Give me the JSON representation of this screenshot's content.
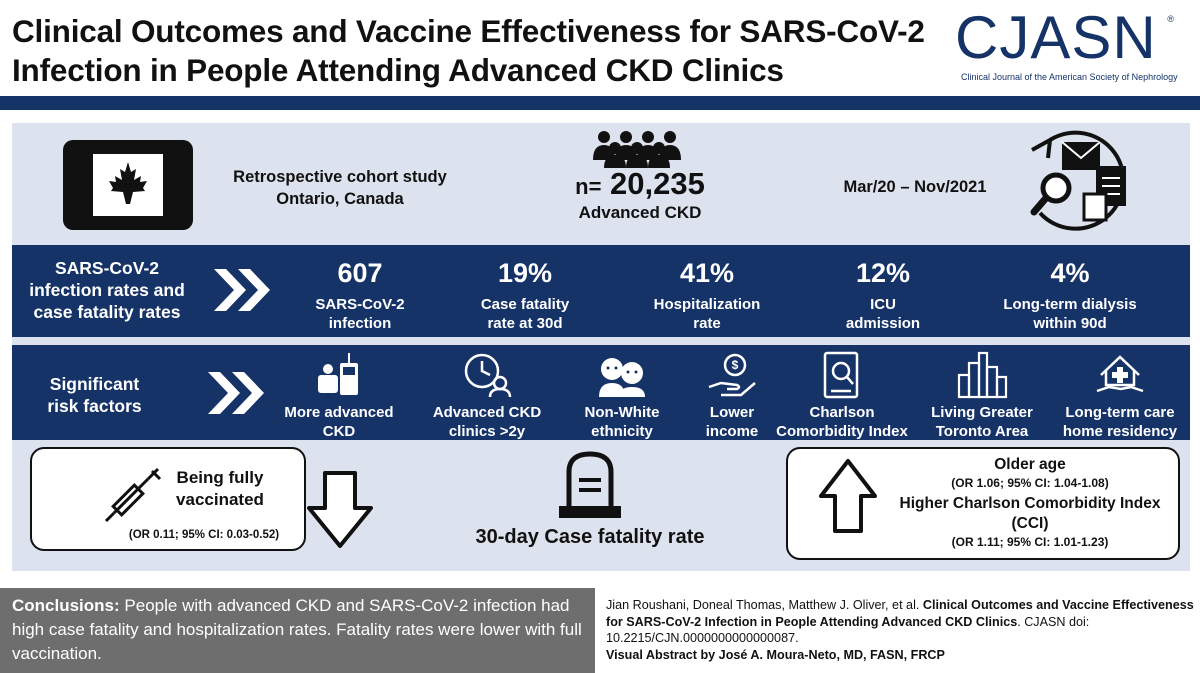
{
  "header": {
    "title_line1": "Clinical Outcomes and Vaccine Effectiveness for SARS-CoV-2",
    "title_line2": "Infection in People Attending Advanced CKD Clinics",
    "logo_text": "CJASN",
    "logo_subtitle": "Clinical Journal of the American Society of Nephrology",
    "logo_registered": "®"
  },
  "study": {
    "design": "Retrospective cohort study",
    "location": "Ontario, Canada",
    "n_prefix": "n=",
    "n_value": "20,235",
    "population": "Advanced CKD",
    "period": "Mar/20 – Nov/2021"
  },
  "infection_band": {
    "label_line1": "SARS-CoV-2",
    "label_line2": "infection rates and",
    "label_line3": "case fatality rates",
    "stats": [
      {
        "value": "607",
        "label1": "SARS-CoV-2",
        "label2": "infection"
      },
      {
        "value": "19%",
        "label1": "Case fatality",
        "label2": "rate at 30d"
      },
      {
        "value": "41%",
        "label1": "Hospitalization",
        "label2": "rate"
      },
      {
        "value": "12%",
        "label1": "ICU",
        "label2": "admission"
      },
      {
        "value": "4%",
        "label1": "Long-term dialysis",
        "label2": "within 90d"
      }
    ]
  },
  "risk_band": {
    "label_line1": "Significant",
    "label_line2": "risk factors",
    "factors": [
      {
        "icon": "dialysis-machine-icon",
        "label1": "More advanced",
        "label2": "CKD"
      },
      {
        "icon": "clock-person-icon",
        "label1": "Advanced CKD",
        "label2": "clinics >2y"
      },
      {
        "icon": "diverse-faces-icon",
        "label1": "Non-White",
        "label2": "ethnicity"
      },
      {
        "icon": "hand-coin-icon",
        "label1": "Lower",
        "label2": "income"
      },
      {
        "icon": "medical-record-icon",
        "label1": "Charlson",
        "label2": "Comorbidity Index"
      },
      {
        "icon": "city-skyline-icon",
        "label1": "Living Greater",
        "label2": "Toronto Area"
      },
      {
        "icon": "care-home-icon",
        "label1": "Long-term care",
        "label2": "home residency"
      }
    ]
  },
  "outcomes": {
    "vaccinated_line1": "Being fully",
    "vaccinated_line2": "vaccinated",
    "vaccinated_or": "(OR 0.11; 95% CI: 0.03-0.52)",
    "center_label": "30-day Case fatality rate",
    "older_age": "Older age",
    "older_age_or": "(OR 1.06; 95% CI: 1.04-1.08)",
    "cci_line1": "Higher Charlson Comorbidity Index",
    "cci_line2": "(CCI)",
    "cci_or": "(OR 1.11; 95% CI: 1.01-1.23)"
  },
  "conclusions": {
    "heading": "Conclusions:",
    "text": "People with advanced CKD and SARS-CoV-2 infection had high case fatality and hospitalization rates. Fatality rates were lower with full vaccination."
  },
  "citation": {
    "authors": "Jian Roushani, Doneal Thomas, Matthew J. Oliver, et al.",
    "title": "Clinical Outcomes and Vaccine Effectiveness for SARS-CoV-2 Infection in People Attending Advanced CKD Clinics",
    "journal": ". CJASN doi: 10.2215/CJN.0000000000000087.",
    "credit": "Visual Abstract by José A. Moura-Neto, MD, FASN, FRCP"
  }
}
